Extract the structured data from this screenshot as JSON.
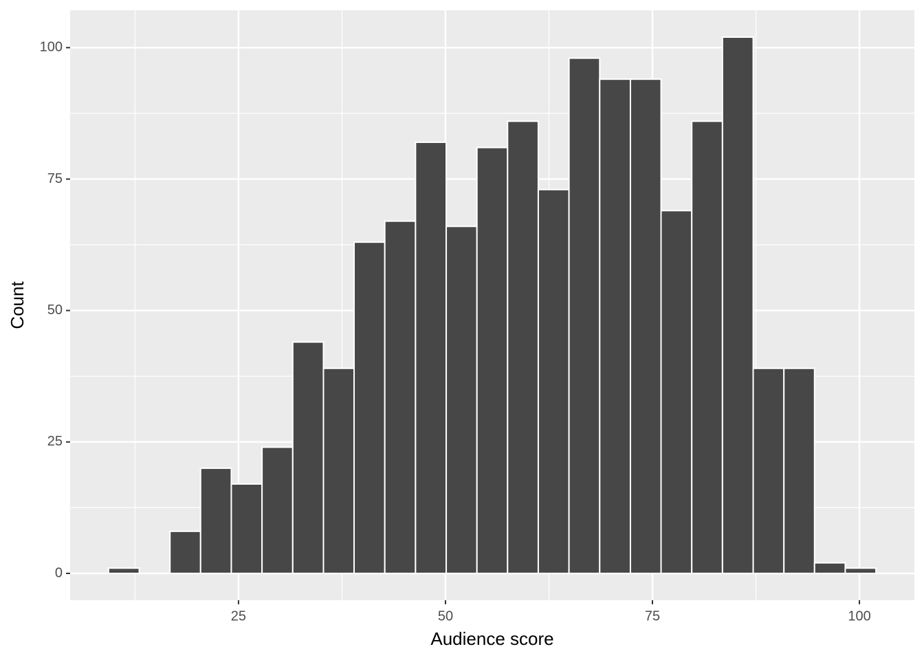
{
  "chart_data": {
    "type": "histogram",
    "x_label": "Audience score",
    "y_label": "Count",
    "bins": [
      9.3,
      13.01,
      16.72,
      20.42,
      24.13,
      27.84,
      31.55,
      35.26,
      38.96,
      42.67,
      46.38,
      50.09,
      53.8,
      57.5,
      61.21,
      64.92,
      68.63,
      72.34,
      76.04,
      79.75,
      83.46,
      87.17,
      90.88,
      94.58,
      98.29,
      102.0
    ],
    "values": [
      1,
      0,
      8,
      20,
      17,
      24,
      44,
      39,
      63,
      67,
      82,
      66,
      81,
      86,
      73,
      98,
      94,
      94,
      69,
      86,
      102,
      39,
      39,
      2,
      1
    ],
    "color": "#474747",
    "edge_color": "#ffffff",
    "xlim": [
      4.66,
      106.64
    ],
    "ylim": [
      -5.1,
      107.1
    ],
    "xticks": [
      25,
      50,
      75,
      100
    ],
    "yticks": [
      0,
      25,
      50,
      75,
      100
    ],
    "xminor_ticks": [
      12.5,
      37.5,
      62.5,
      87.5
    ],
    "yminor_ticks": [
      12.5,
      37.5,
      62.5,
      87.5
    ],
    "grid": true
  }
}
